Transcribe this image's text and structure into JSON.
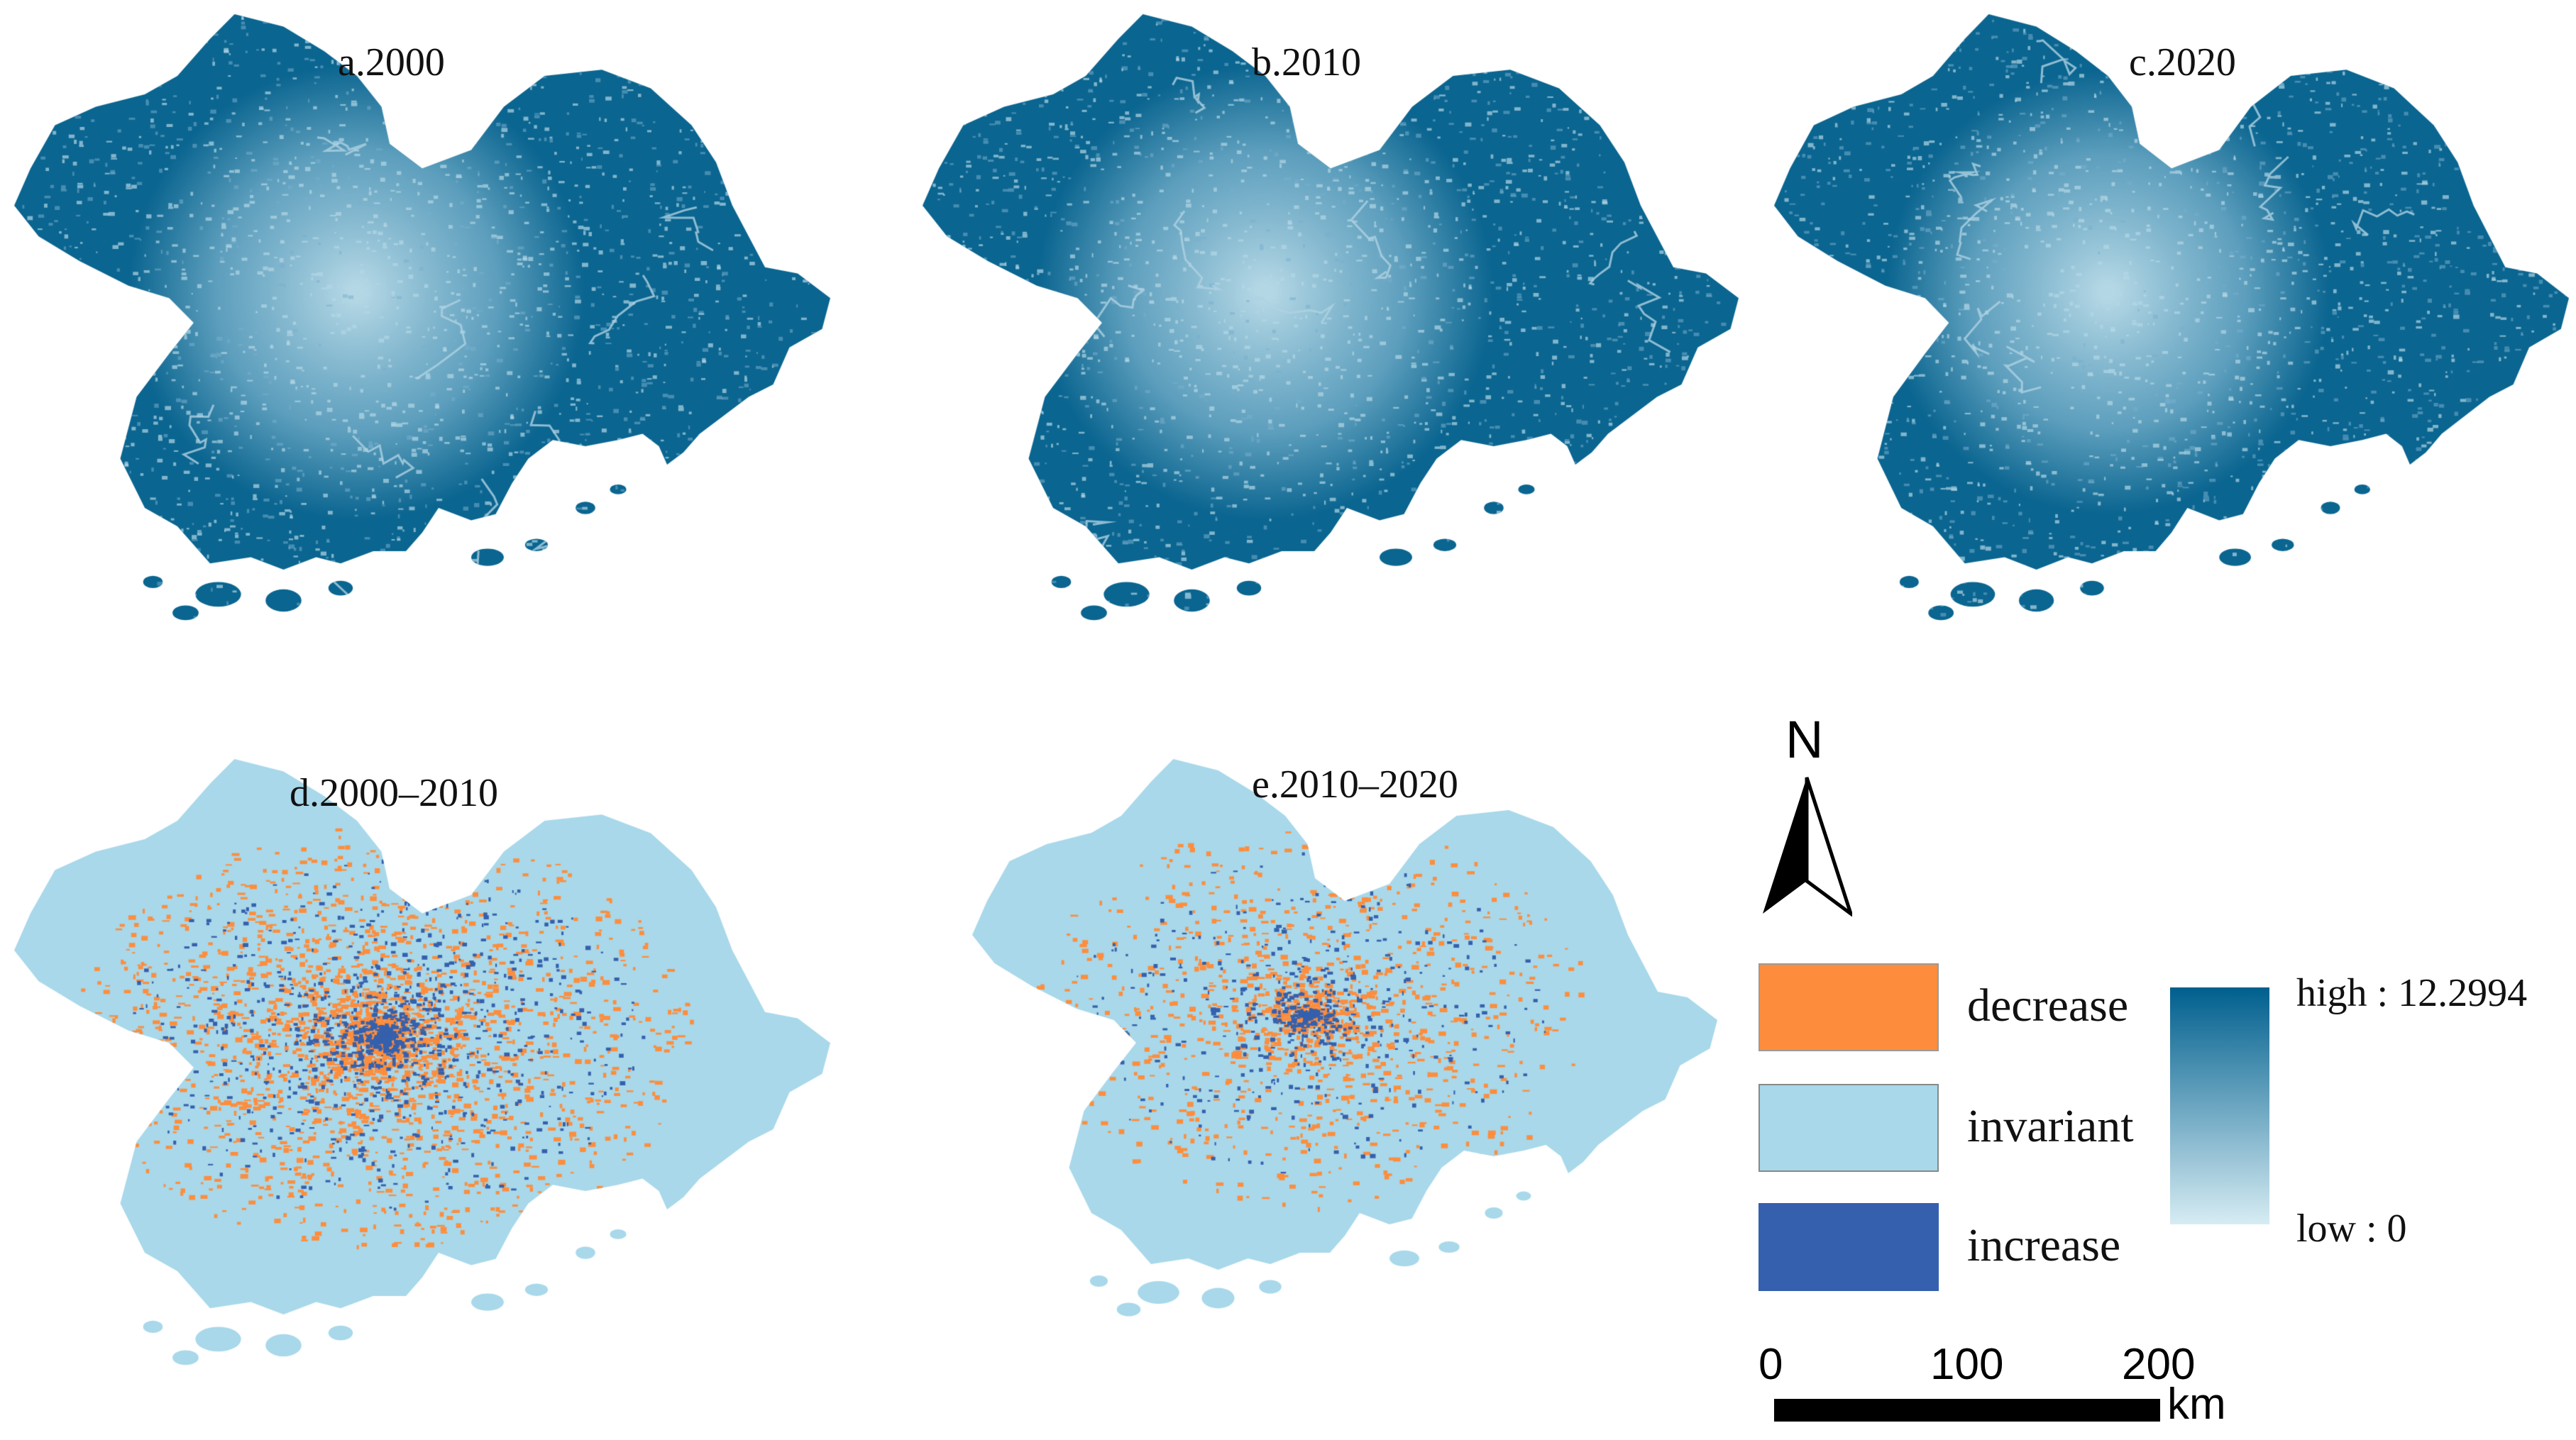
{
  "panels": [
    {
      "label": "a.2000",
      "kind": "value",
      "year_seed": 1
    },
    {
      "label": "b.2010",
      "kind": "value",
      "year_seed": 2
    },
    {
      "label": "c.2020",
      "kind": "value",
      "year_seed": 3
    },
    {
      "label": "d.2000–2010",
      "kind": "change",
      "year_seed": 4
    },
    {
      "label": "e.2010–2020",
      "kind": "change",
      "year_seed": 5
    }
  ],
  "legend": {
    "categories": [
      {
        "label": "decrease",
        "color": "#fd8d3c"
      },
      {
        "label": "invariant",
        "color": "#a8d8ea"
      },
      {
        "label": "increase",
        "color": "#3560ad"
      }
    ],
    "ramp": {
      "high_label": "high : 12.2994",
      "low_label": "low : 0",
      "high_value": 12.2994,
      "low_value": 0,
      "high_color": "#005f8e",
      "low_color": "#d6ecf3"
    }
  },
  "north_arrow": {
    "letter": "N",
    "icon": "north-arrow-icon"
  },
  "scale_bar": {
    "ticks": [
      "0",
      "100",
      "200"
    ],
    "unit": "km"
  },
  "colors": {
    "high_value": "#0a6590",
    "low_value": "#a7cfdf",
    "invariant": "#a8d8ea",
    "decrease": "#fd8d3c",
    "increase": "#3560ad"
  }
}
